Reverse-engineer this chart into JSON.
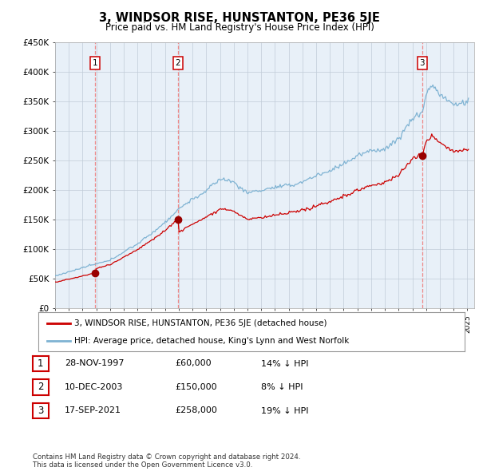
{
  "title": "3, WINDSOR RISE, HUNSTANTON, PE36 5JE",
  "subtitle": "Price paid vs. HM Land Registry's House Price Index (HPI)",
  "x_start_year": 1995,
  "x_end_year": 2025,
  "y_min": 0,
  "y_max": 450000,
  "y_ticks": [
    0,
    50000,
    100000,
    150000,
    200000,
    250000,
    300000,
    350000,
    400000,
    450000
  ],
  "y_tick_labels": [
    "£0",
    "£50K",
    "£100K",
    "£150K",
    "£200K",
    "£250K",
    "£300K",
    "£350K",
    "£400K",
    "£450K"
  ],
  "sale_points": [
    {
      "year": 1997.91,
      "price": 60000,
      "label": "1"
    },
    {
      "year": 2003.94,
      "price": 150000,
      "label": "2"
    },
    {
      "year": 2021.71,
      "price": 258000,
      "label": "3"
    }
  ],
  "sale_info": [
    {
      "num": "1",
      "date": "28-NOV-1997",
      "price": "£60,000",
      "hpi": "14% ↓ HPI"
    },
    {
      "num": "2",
      "date": "10-DEC-2003",
      "price": "£150,000",
      "hpi": "8% ↓ HPI"
    },
    {
      "num": "3",
      "date": "17-SEP-2021",
      "price": "£258,000",
      "hpi": "19% ↓ HPI"
    }
  ],
  "legend_line1": "3, WINDSOR RISE, HUNSTANTON, PE36 5JE (detached house)",
  "legend_line2": "HPI: Average price, detached house, King's Lynn and West Norfolk",
  "footer": "Contains HM Land Registry data © Crown copyright and database right 2024.\nThis data is licensed under the Open Government Licence v3.0.",
  "line_color_red": "#cc0000",
  "line_color_blue": "#7fb3d3",
  "dot_color": "#990000",
  "vline_color": "#ee8888",
  "chart_bg": "#e8f0f8",
  "background_color": "#ffffff",
  "grid_color": "#c0ccd8"
}
